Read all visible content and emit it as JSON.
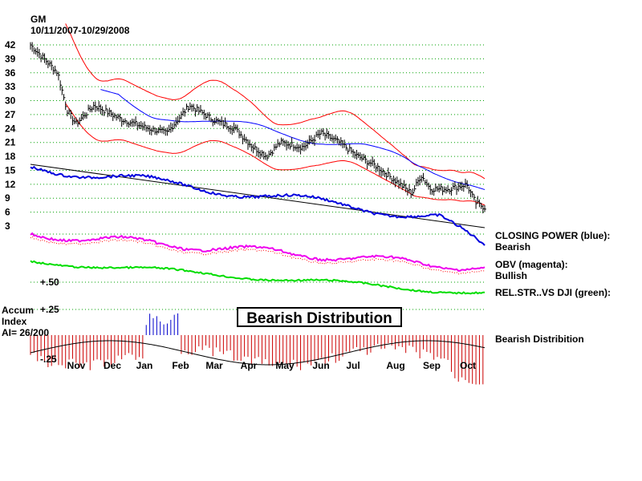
{
  "header": {
    "symbol": "GM",
    "date_range": "10/11/2007-10/29/2008"
  },
  "panels": {
    "closing_power": {
      "title": "CLOSING POWER (blue):",
      "value": "Bearish"
    },
    "obv": {
      "title": "OBV (magenta):",
      "value": "Bullish"
    },
    "rel_strength": {
      "title": "REL.STR..VS DJI (green):"
    },
    "accum": {
      "title_line1": "Accum",
      "title_line2": "Index",
      "ai": "AI= 26/200",
      "right_label": "Bearish Distribition"
    }
  },
  "banner": "Bearish Distribution",
  "colors": {
    "price": "#000000",
    "bands": "#ff0000",
    "ma": "#0000ff",
    "closing_power": "#0000dd",
    "obv": "#ee00ee",
    "rel_str": "#00dd00",
    "accum_negative": "#cc0000",
    "accum_positive": "#0000cc",
    "grid": "#00a000"
  },
  "chart_data": {
    "type": "line",
    "title": "GM",
    "subtitle": "10/11/2007-10/29/2008",
    "x_months": [
      "Nov",
      "Dec",
      "Jan",
      "Feb",
      "Mar",
      "Apr",
      "May",
      "Jun",
      "Jul",
      "Aug",
      "Sep",
      "Oct"
    ],
    "y_ticks": [
      42,
      39,
      36,
      33,
      30,
      27,
      24,
      21,
      18,
      15,
      12,
      9,
      6,
      3
    ],
    "ylim": [
      3,
      42
    ],
    "grid": true,
    "price_series": {
      "name": "GM",
      "x": [
        "Oct",
        "Nov",
        "Nov",
        "Dec",
        "Dec",
        "Jan",
        "Jan",
        "Feb",
        "Feb",
        "Mar",
        "Mar",
        "Apr",
        "Apr",
        "May",
        "May",
        "Jun",
        "Jun",
        "Jul",
        "Jul",
        "Aug",
        "Aug",
        "Sep",
        "Sep",
        "Oct",
        "Oct"
      ],
      "values": [
        42,
        39,
        25,
        30,
        26,
        24,
        23,
        29,
        26,
        24,
        18,
        21,
        20,
        23,
        21,
        17,
        14,
        10,
        10,
        11,
        10,
        11,
        11,
        7,
        6
      ]
    },
    "accum_ticks": [
      "+.50",
      "+.25",
      "-.25"
    ]
  }
}
